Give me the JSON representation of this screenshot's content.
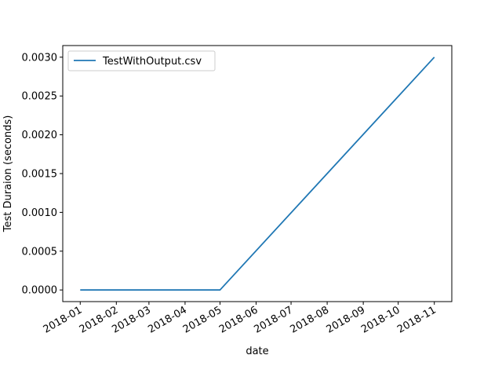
{
  "chart_data": {
    "type": "line",
    "title": "",
    "xlabel": "date",
    "ylabel": "Test Duraion (seconds)",
    "x": [
      "2018-01-01",
      "2018-05-01",
      "2018-11-01"
    ],
    "series": [
      {
        "name": "TestWithOutput.csv",
        "values": [
          0.0,
          0.0,
          0.003
        ],
        "color": "#1f77b4"
      }
    ],
    "xticks": [
      "2018-01-01",
      "2018-02-01",
      "2018-03-01",
      "2018-04-01",
      "2018-05-01",
      "2018-06-01",
      "2018-07-01",
      "2018-08-01",
      "2018-09-01",
      "2018-10-01",
      "2018-11-01"
    ],
    "xtick_labels": [
      "2018-01",
      "2018-02",
      "2018-03",
      "2018-04",
      "2018-05",
      "2018-06",
      "2018-07",
      "2018-08",
      "2018-09",
      "2018-10",
      "2018-11"
    ],
    "yticks": [
      0.0,
      0.0005,
      0.001,
      0.0015,
      0.002,
      0.0025,
      0.003
    ],
    "ytick_labels": [
      "0.0000",
      "0.0005",
      "0.0010",
      "0.0015",
      "0.0020",
      "0.0025",
      "0.0030"
    ],
    "xlim": [
      "2017-12-17",
      "2018-11-16"
    ],
    "ylim": [
      -0.00015,
      0.00315
    ],
    "grid": false,
    "legend": "top-left"
  }
}
